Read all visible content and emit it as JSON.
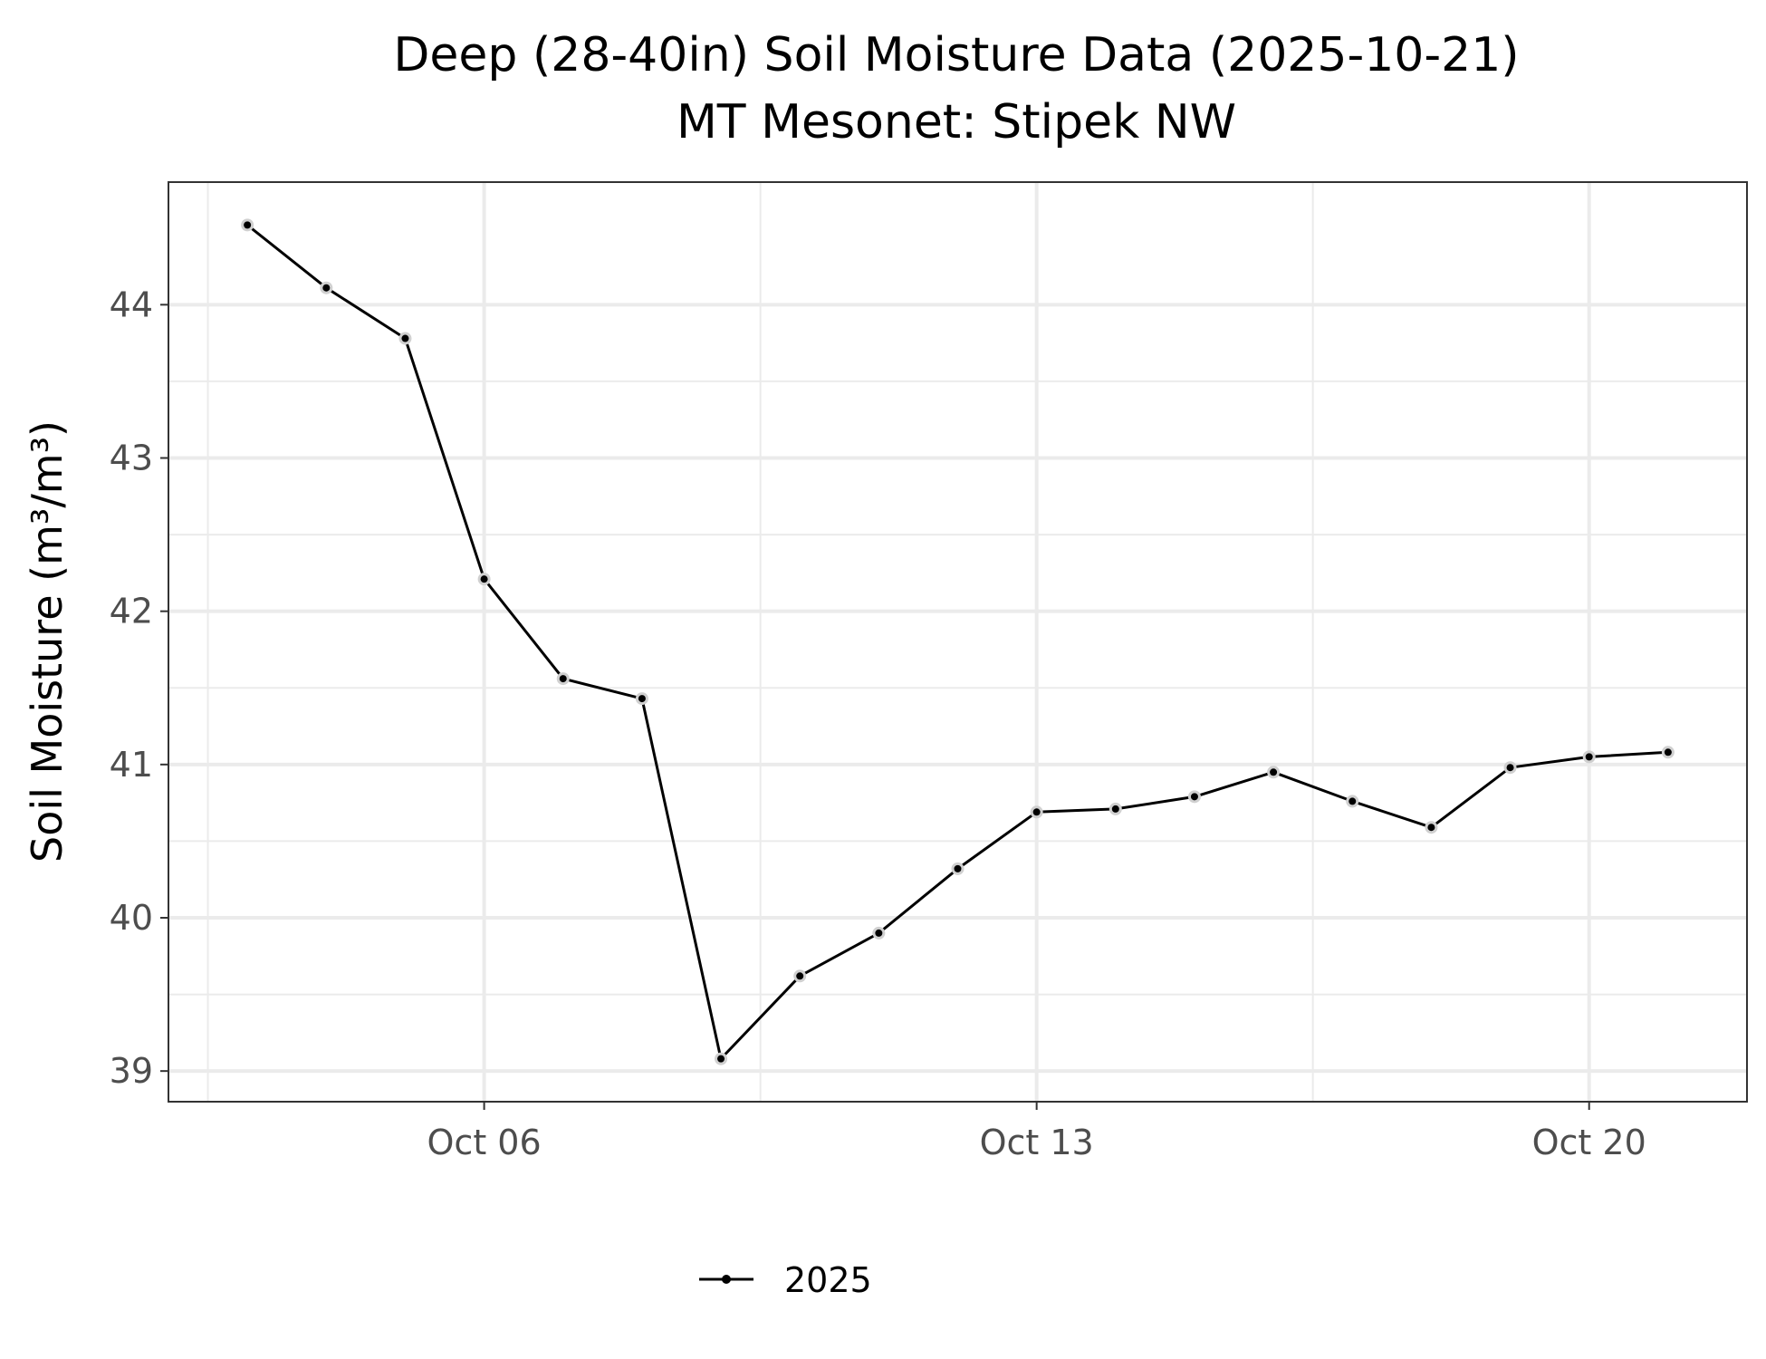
{
  "chart_data": {
    "type": "line",
    "title": "Deep (28-40in) Soil Moisture Data (2025-10-21)",
    "subtitle": "MT Mesonet: Stipek NW",
    "xlabel": "",
    "ylabel": "Soil Moisture (m³/m³)",
    "xlim": [
      "2025-10-02",
      "2025-10-22"
    ],
    "ylim": [
      38.8,
      44.8
    ],
    "x_ticks": [
      {
        "date": "2025-10-06",
        "label": "Oct 06"
      },
      {
        "date": "2025-10-13",
        "label": "Oct 13"
      },
      {
        "date": "2025-10-20",
        "label": "Oct 20"
      }
    ],
    "y_ticks": [
      39,
      40,
      41,
      42,
      43,
      44
    ],
    "grid": true,
    "legend_position": "bottom",
    "series": [
      {
        "name": "2025",
        "color": "#000000",
        "x": [
          "2025-10-03",
          "2025-10-04",
          "2025-10-05",
          "2025-10-06",
          "2025-10-07",
          "2025-10-08",
          "2025-10-09",
          "2025-10-10",
          "2025-10-11",
          "2025-10-12",
          "2025-10-13",
          "2025-10-14",
          "2025-10-15",
          "2025-10-16",
          "2025-10-17",
          "2025-10-18",
          "2025-10-19",
          "2025-10-20",
          "2025-10-21"
        ],
        "values": [
          44.52,
          44.11,
          43.78,
          42.21,
          41.56,
          41.43,
          39.08,
          39.62,
          39.9,
          40.32,
          40.69,
          40.71,
          40.79,
          40.95,
          40.76,
          40.59,
          40.98,
          41.05,
          41.08
        ]
      }
    ]
  }
}
